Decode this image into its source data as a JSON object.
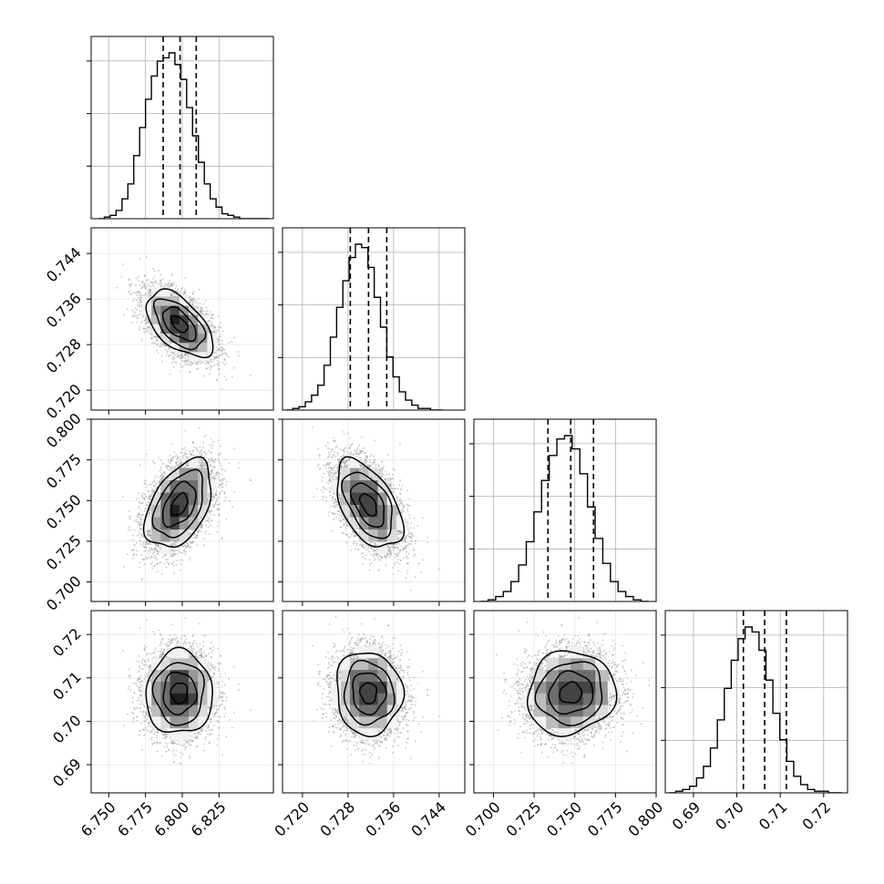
{
  "chart_data": {
    "type": "corner",
    "grid": true,
    "parameters": [
      {
        "range": [
          6.738,
          6.862
        ],
        "ticks": [
          "6.750",
          "6.775",
          "6.800",
          "6.825"
        ],
        "tick_values": [
          6.75,
          6.775,
          6.8,
          6.825
        ],
        "quantiles": [
          6.787,
          6.7985,
          6.8095
        ],
        "mean": 6.798,
        "sd": 0.0113,
        "hist": {
          "edges": [
            6.743,
            6.747,
            6.751,
            6.755,
            6.759,
            6.763,
            6.767,
            6.771,
            6.775,
            6.779,
            6.783,
            6.787,
            6.791,
            6.795,
            6.799,
            6.803,
            6.807,
            6.811,
            6.815,
            6.819,
            6.823,
            6.827,
            6.831,
            6.835,
            6.839,
            6.843,
            6.847,
            6.851,
            6.855,
            6.859
          ],
          "heights": [
            0.0,
            0.01,
            0.02,
            0.05,
            0.12,
            0.21,
            0.38,
            0.55,
            0.72,
            0.86,
            0.95,
            0.97,
            1.0,
            0.93,
            0.84,
            0.67,
            0.5,
            0.34,
            0.21,
            0.12,
            0.07,
            0.03,
            0.02,
            0.01,
            0.0,
            0.0,
            0.0,
            0.0,
            0.0
          ]
        }
      },
      {
        "range": [
          0.7165,
          0.7485
        ],
        "ticks": [
          "0.720",
          "0.728",
          "0.736",
          "0.744"
        ],
        "tick_values": [
          0.72,
          0.728,
          0.736,
          0.744
        ],
        "quantiles": [
          0.7284,
          0.7316,
          0.7348
        ],
        "mean": 0.7316,
        "sd": 0.0029,
        "hist": {
          "edges": [
            0.7172,
            0.7183,
            0.7194,
            0.7205,
            0.7216,
            0.7227,
            0.7238,
            0.7249,
            0.726,
            0.7271,
            0.7282,
            0.7293,
            0.7304,
            0.7315,
            0.7326,
            0.7337,
            0.7348,
            0.7359,
            0.737,
            0.7381,
            0.7392,
            0.7403,
            0.7414,
            0.7425,
            0.7436,
            0.7447
          ],
          "heights": [
            0.0,
            0.01,
            0.02,
            0.05,
            0.09,
            0.15,
            0.27,
            0.44,
            0.62,
            0.78,
            0.92,
            1.0,
            0.98,
            0.86,
            0.68,
            0.5,
            0.32,
            0.2,
            0.11,
            0.06,
            0.03,
            0.01,
            0.01,
            0.0,
            0.0
          ]
        }
      },
      {
        "range": [
          0.688,
          0.8
        ],
        "ticks": [
          "0.700",
          "0.725",
          "0.750",
          "0.775",
          "0.800"
        ],
        "tick_values": [
          0.7,
          0.725,
          0.75,
          0.775,
          0.8
        ],
        "quantiles": [
          0.7335,
          0.7475,
          0.7615
        ],
        "mean": 0.7475,
        "sd": 0.0135,
        "hist": {
          "edges": [
            0.692,
            0.6967,
            0.7014,
            0.7061,
            0.7108,
            0.7155,
            0.7202,
            0.7249,
            0.7296,
            0.7343,
            0.739,
            0.7437,
            0.7484,
            0.7531,
            0.7578,
            0.7625,
            0.7672,
            0.7719,
            0.7766,
            0.7813,
            0.786,
            0.7907,
            0.7954
          ],
          "heights": [
            0.0,
            0.01,
            0.03,
            0.06,
            0.12,
            0.22,
            0.36,
            0.54,
            0.73,
            0.88,
            0.98,
            1.0,
            0.92,
            0.77,
            0.57,
            0.38,
            0.23,
            0.12,
            0.06,
            0.03,
            0.01,
            0.0
          ]
        }
      },
      {
        "range": [
          0.6835,
          0.7255
        ],
        "ticks": [
          "0.69",
          "0.70",
          "0.71",
          "0.72"
        ],
        "tick_values": [
          0.69,
          0.7,
          0.71,
          0.72
        ],
        "quantiles": [
          0.7015,
          0.7064,
          0.7114
        ],
        "mean": 0.7065,
        "sd": 0.0048,
        "hist": {
          "edges": [
            0.6843,
            0.6859,
            0.6875,
            0.6891,
            0.6907,
            0.6923,
            0.6939,
            0.6955,
            0.6971,
            0.6987,
            0.7003,
            0.7019,
            0.7035,
            0.7051,
            0.7067,
            0.7083,
            0.7099,
            0.7115,
            0.7131,
            0.7147,
            0.7163,
            0.7179,
            0.7195,
            0.7211,
            0.7227,
            0.7243
          ],
          "heights": [
            0.0,
            0.01,
            0.02,
            0.04,
            0.09,
            0.16,
            0.27,
            0.44,
            0.63,
            0.8,
            0.93,
            1.0,
            0.97,
            0.86,
            0.68,
            0.48,
            0.32,
            0.19,
            0.1,
            0.05,
            0.02,
            0.01,
            0.01,
            0.0,
            0.0
          ]
        }
      }
    ],
    "pairs": [
      {
        "x": 0,
        "y": 1,
        "corr": -0.55
      },
      {
        "x": 0,
        "y": 2,
        "corr": 0.45
      },
      {
        "x": 1,
        "y": 2,
        "corr": -0.5
      },
      {
        "x": 0,
        "y": 3,
        "corr": 0.02
      },
      {
        "x": 1,
        "y": 3,
        "corr": -0.05
      },
      {
        "x": 2,
        "y": 3,
        "corr": 0.08
      }
    ],
    "contour_levels_sigma": [
      0.5,
      1.0,
      1.5,
      2.0
    ],
    "colors": {
      "line": "#000000",
      "points": "#9a9a9a",
      "grid": "#b0b0b0",
      "frame": "#000000"
    }
  }
}
